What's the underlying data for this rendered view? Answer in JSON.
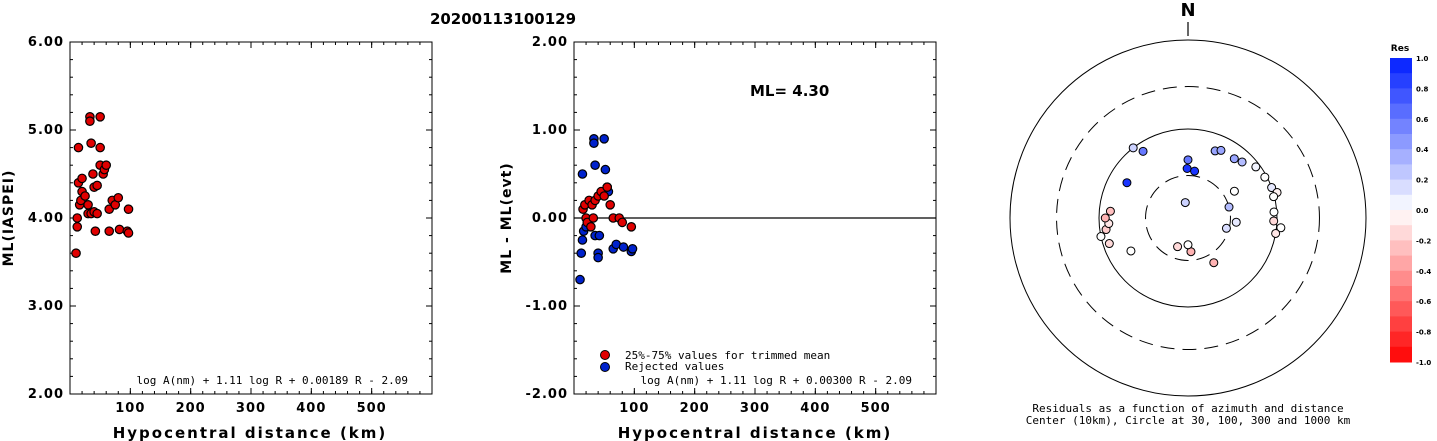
{
  "title": "20200113100129",
  "chart_data": [
    {
      "id": "left",
      "type": "scatter",
      "ylabel": "ML(IASPEI)",
      "xlabel": "Hypocentral distance (km)",
      "xlim": [
        0,
        600
      ],
      "ylim": [
        2.0,
        6.0
      ],
      "xticks": [
        100,
        200,
        300,
        400,
        500
      ],
      "yticks": [
        "2.00",
        "3.00",
        "4.00",
        "5.00",
        "6.00"
      ],
      "formula": "log A(nm) + 1.11 log R + 0.00189 R - 2.09",
      "marker_color": "#e00000",
      "points": [
        [
          10,
          3.6
        ],
        [
          12,
          4.0
        ],
        [
          12,
          3.9
        ],
        [
          14,
          4.8
        ],
        [
          14,
          4.4
        ],
        [
          16,
          4.15
        ],
        [
          18,
          4.2
        ],
        [
          20,
          4.3
        ],
        [
          20,
          4.45
        ],
        [
          25,
          4.25
        ],
        [
          30,
          4.05
        ],
        [
          30,
          4.15
        ],
        [
          33,
          5.15
        ],
        [
          33,
          5.1
        ],
        [
          35,
          4.85
        ],
        [
          35,
          4.05
        ],
        [
          38,
          4.5
        ],
        [
          40,
          4.35
        ],
        [
          40,
          4.07
        ],
        [
          42,
          3.85
        ],
        [
          45,
          4.37
        ],
        [
          45,
          4.05
        ],
        [
          50,
          5.15
        ],
        [
          50,
          4.8
        ],
        [
          50,
          4.6
        ],
        [
          55,
          4.5
        ],
        [
          57,
          4.55
        ],
        [
          60,
          4.6
        ],
        [
          65,
          4.1
        ],
        [
          65,
          3.85
        ],
        [
          70,
          4.2
        ],
        [
          75,
          4.15
        ],
        [
          80,
          4.23
        ],
        [
          82,
          3.87
        ],
        [
          95,
          3.85
        ],
        [
          97,
          4.1
        ],
        [
          97,
          3.83
        ]
      ]
    },
    {
      "id": "middle",
      "type": "scatter",
      "ylabel": "ML - ML(evt)",
      "xlabel": "Hypocentral distance (km)",
      "xlim": [
        0,
        600
      ],
      "ylim": [
        -2.0,
        2.0
      ],
      "xticks": [
        100,
        200,
        300,
        400,
        500
      ],
      "yticks": [
        "-2.00",
        "-1.00",
        "0.00",
        "1.00",
        "2.00"
      ],
      "annotation": "ML= 4.30",
      "formula": "log A(nm) + 1.11 log R + 0.00300 R - 2.09",
      "zero_line": 0,
      "legend": [
        {
          "label": "25%-75% values for trimmed mean",
          "color": "#e00000"
        },
        {
          "label": "Rejected values",
          "color": "#0022cc"
        }
      ],
      "accepted_points": [
        [
          15,
          0.1
        ],
        [
          18,
          0.15
        ],
        [
          20,
          0.0
        ],
        [
          22,
          -0.05
        ],
        [
          25,
          0.2
        ],
        [
          28,
          -0.1
        ],
        [
          30,
          0.15
        ],
        [
          32,
          0.0
        ],
        [
          35,
          0.2
        ],
        [
          40,
          0.25
        ],
        [
          45,
          0.3
        ],
        [
          50,
          0.25
        ],
        [
          55,
          0.35
        ],
        [
          60,
          0.15
        ],
        [
          65,
          0.0
        ],
        [
          75,
          0.0
        ],
        [
          80,
          -0.05
        ],
        [
          95,
          -0.1
        ]
      ],
      "rejected_points": [
        [
          10,
          -0.7
        ],
        [
          12,
          -0.4
        ],
        [
          14,
          -0.25
        ],
        [
          14,
          0.5
        ],
        [
          16,
          -0.15
        ],
        [
          20,
          -0.1
        ],
        [
          33,
          0.9
        ],
        [
          33,
          0.85
        ],
        [
          35,
          0.6
        ],
        [
          35,
          -0.2
        ],
        [
          40,
          -0.4
        ],
        [
          40,
          -0.45
        ],
        [
          42,
          -0.2
        ],
        [
          50,
          0.9
        ],
        [
          52,
          0.55
        ],
        [
          55,
          0.35
        ],
        [
          57,
          0.3
        ],
        [
          65,
          -0.35
        ],
        [
          70,
          -0.3
        ],
        [
          82,
          -0.33
        ],
        [
          95,
          -0.38
        ],
        [
          97,
          -0.35
        ]
      ]
    },
    {
      "id": "polar",
      "type": "scatter",
      "north_label": "N",
      "caption_line1": "Residuals as a function of azimuth and distance",
      "caption_line2": "Center (10km), Circle at 30, 100, 300 and 1000 km",
      "rings_km": [
        30,
        100,
        300,
        1000
      ],
      "dashed_rings_km": [
        30,
        300
      ],
      "colorbar_title": "Res",
      "colorbar_ticks": [
        "1.0",
        "0.8",
        "0.6",
        "0.4",
        "0.2",
        "0.0",
        "-0.2",
        "-0.4",
        "-0.6",
        "-0.8",
        "-1.0"
      ],
      "colorbar_range": [
        -1.0,
        1.0
      ],
      "points_azimuth_distkm_residual": [
        [
          300,
          62,
          0.9
        ],
        [
          322,
          100,
          0.2
        ],
        [
          326,
          80,
          0.6
        ],
        [
          0,
          45,
          0.6
        ],
        [
          359,
          36,
          0.9
        ],
        [
          8,
          34,
          0.9
        ],
        [
          22,
          65,
          0.4
        ],
        [
          26,
          70,
          0.4
        ],
        [
          38,
          70,
          0.4
        ],
        [
          44,
          75,
          0.3
        ],
        [
          53,
          90,
          0.05
        ],
        [
          62,
          95,
          0.0
        ],
        [
          70,
          100,
          0.1
        ],
        [
          74,
          110,
          -0.05
        ],
        [
          76,
          98,
          0.0
        ],
        [
          86,
          93,
          0.0
        ],
        [
          92,
          92,
          -0.15
        ],
        [
          96,
          112,
          0.0
        ],
        [
          100,
          100,
          -0.1
        ],
        [
          240,
          55,
          0.0
        ],
        [
          252,
          85,
          -0.15
        ],
        [
          258,
          100,
          0.0
        ],
        [
          262,
          85,
          -0.2
        ],
        [
          266,
          78,
          -0.1
        ],
        [
          270,
          85,
          -0.3
        ],
        [
          275,
          75,
          -0.25
        ],
        [
          150,
          38,
          -0.3
        ],
        [
          175,
          24,
          -0.3
        ],
        [
          180,
          20,
          0.0
        ],
        [
          200,
          22,
          -0.15
        ],
        [
          75,
          30,
          0.3
        ],
        [
          60,
          40,
          0.0
        ],
        [
          95,
          35,
          0.1
        ],
        [
          105,
          28,
          0.15
        ],
        [
          350,
          15,
          0.2
        ]
      ]
    }
  ]
}
